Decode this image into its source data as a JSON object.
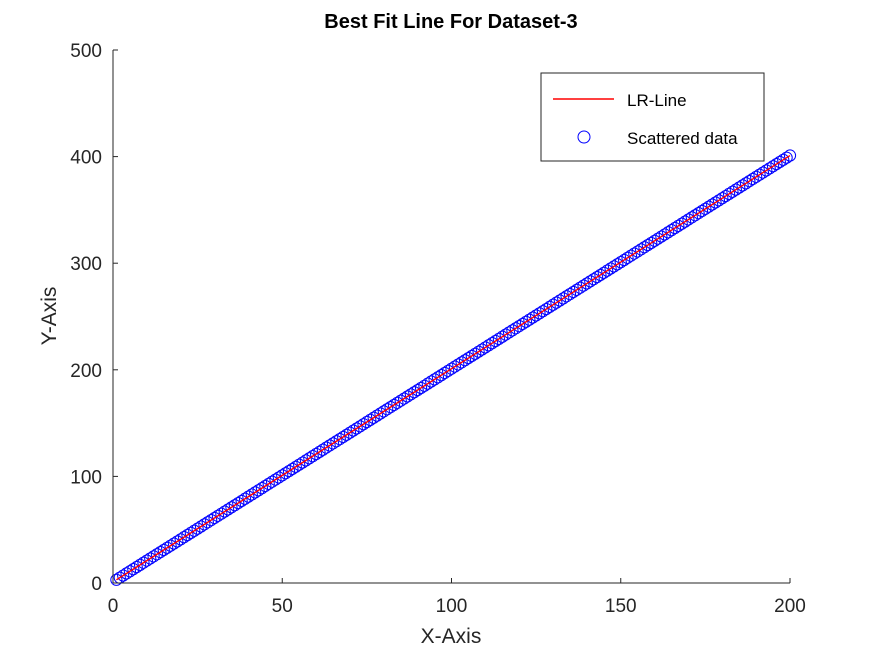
{
  "chart_data": {
    "type": "scatter",
    "title": "Best Fit Line For Dataset-3",
    "xlabel": "X-Axis",
    "ylabel": "Y-Axis",
    "xlim": [
      0,
      200
    ],
    "ylim": [
      0,
      500
    ],
    "xticks": [
      "0",
      "50",
      "100",
      "150",
      "200"
    ],
    "yticks": [
      "0",
      "100",
      "200",
      "300",
      "400",
      "500"
    ],
    "grid": false,
    "legend_position": "top-right",
    "series": [
      {
        "name": "LR-Line",
        "kind": "line",
        "color": "#ff0000",
        "x": [
          1,
          200
        ],
        "y": [
          3,
          401
        ]
      },
      {
        "name": "Scattered data",
        "kind": "scatter",
        "color": "#0000ff",
        "x_start": 1,
        "x_end": 200,
        "x_step": 1,
        "slope": 2,
        "intercept": 1
      }
    ]
  }
}
